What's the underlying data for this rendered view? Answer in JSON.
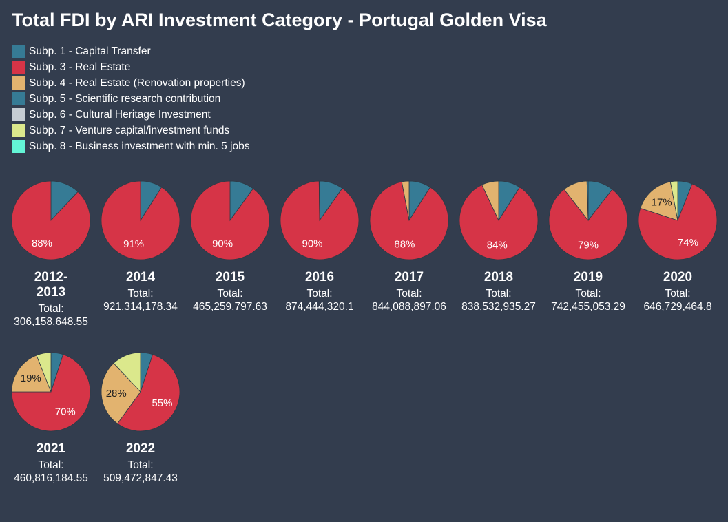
{
  "title": "Total FDI by ARI Investment Category - Portugal Golden Visa",
  "legend": [
    {
      "label": "Subp. 1 - Capital Transfer",
      "color": "#367b95"
    },
    {
      "label": "Subp. 3 - Real Estate",
      "color": "#d63447"
    },
    {
      "label": "Subp. 4 - Real Estate (Renovation properties)",
      "color": "#e2b36f"
    },
    {
      "label": "Subp. 5 - Scientific research contribution",
      "color": "#367b95"
    },
    {
      "label": "Subp. 6 - Cultural Heritage Investment",
      "color": "#c5ccd3"
    },
    {
      "label": "Subp. 7 - Venture capital/investment funds",
      "color": "#dbe88c"
    },
    {
      "label": "Subp. 8 - Business investment with min. 5 jobs",
      "color": "#63f5d6"
    }
  ],
  "total_label": "Total:",
  "chart_data": {
    "type": "pie",
    "series_names": [
      "Subp. 1 - Capital Transfer",
      "Subp. 3 - Real Estate",
      "Subp. 4 - Real Estate (Renovation properties)",
      "Subp. 5 - Scientific research contribution",
      "Subp. 6 - Cultural Heritage Investment",
      "Subp. 7 - Venture capital/investment funds",
      "Subp. 8 - Business investment with min. 5 jobs"
    ],
    "pies": [
      {
        "year": "2012-2013",
        "total": "306,158,648.55",
        "shares": [
          12,
          88,
          0,
          0,
          0,
          0,
          0
        ],
        "labels": [
          "",
          "88%",
          "",
          "",
          "",
          "",
          ""
        ]
      },
      {
        "year": "2014",
        "total": "921,314,178.34",
        "shares": [
          9,
          91,
          0,
          0,
          0,
          0,
          0
        ],
        "labels": [
          "",
          "91%",
          "",
          "",
          "",
          "",
          ""
        ]
      },
      {
        "year": "2015",
        "total": "465,259,797.63",
        "shares": [
          10,
          90,
          0,
          0,
          0,
          0,
          0
        ],
        "labels": [
          "",
          "90%",
          "",
          "",
          "",
          "",
          ""
        ]
      },
      {
        "year": "2016",
        "total": "874,444,320.1",
        "shares": [
          9.8,
          90,
          0.2,
          0,
          0,
          0,
          0
        ],
        "labels": [
          "",
          "90%",
          "",
          "",
          "",
          "",
          ""
        ]
      },
      {
        "year": "2017",
        "total": "844,088,897.06",
        "shares": [
          9,
          88,
          3,
          0,
          0,
          0,
          0
        ],
        "labels": [
          "",
          "88%",
          "",
          "",
          "",
          "",
          ""
        ]
      },
      {
        "year": "2018",
        "total": "838,532,935.27",
        "shares": [
          9,
          84,
          7,
          0,
          0,
          0,
          0
        ],
        "labels": [
          "",
          "84%",
          "",
          "",
          "",
          "",
          ""
        ]
      },
      {
        "year": "2019",
        "total": "742,455,053.29",
        "shares": [
          10.5,
          79,
          10,
          0.5,
          0,
          0,
          0
        ],
        "labels": [
          "",
          "79%",
          "",
          "",
          "",
          "",
          ""
        ]
      },
      {
        "year": "2020",
        "total": "646,729,464.8",
        "shares": [
          6,
          74,
          17,
          0,
          0,
          3,
          0
        ],
        "labels": [
          "",
          "74%",
          "17%",
          "",
          "",
          "",
          ""
        ]
      },
      {
        "year": "2021",
        "total": "460,816,184.55",
        "shares": [
          5,
          70,
          19,
          0,
          0,
          6,
          0
        ],
        "labels": [
          "",
          "70%",
          "19%",
          "",
          "",
          "",
          ""
        ]
      },
      {
        "year": "2022",
        "total": "509,472,847.43",
        "shares": [
          5,
          55,
          28,
          0,
          0,
          12,
          0
        ],
        "labels": [
          "",
          "55%",
          "28%",
          "",
          "",
          "",
          ""
        ]
      }
    ]
  }
}
